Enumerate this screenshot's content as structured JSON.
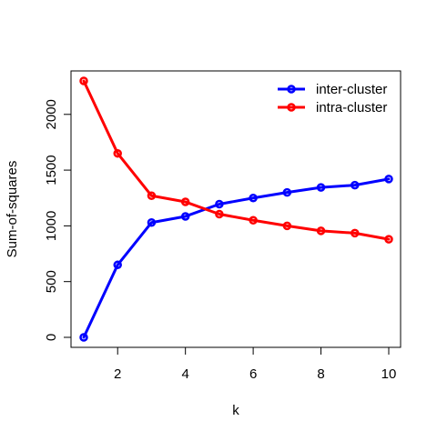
{
  "chart_data": {
    "type": "line",
    "xlabel": "k",
    "ylabel": "Sum-of-squares",
    "x": [
      1,
      2,
      3,
      4,
      5,
      6,
      7,
      8,
      9,
      10
    ],
    "xlim": [
      1,
      10
    ],
    "ylim": [
      0,
      2300
    ],
    "x_ticks": [
      2,
      4,
      6,
      8,
      10
    ],
    "y_ticks": [
      0,
      500,
      1000,
      1500,
      2000
    ],
    "legend_position": "top-right",
    "series": [
      {
        "name": "inter-cluster",
        "color": "#0000ff",
        "values": [
          0,
          650,
          1030,
          1085,
          1195,
          1250,
          1300,
          1345,
          1365,
          1420
        ]
      },
      {
        "name": "intra-cluster",
        "color": "#ff0000",
        "values": [
          2300,
          1650,
          1270,
          1215,
          1105,
          1050,
          1000,
          955,
          935,
          880
        ]
      }
    ]
  }
}
